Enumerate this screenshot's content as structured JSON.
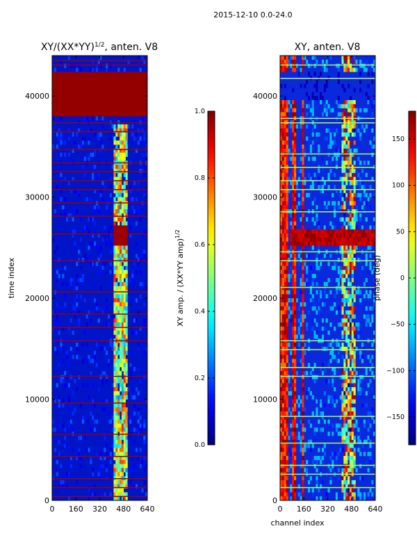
{
  "figure": {
    "suptitle": "2015-12-10 0.0-24.0"
  },
  "chart_data": [
    {
      "type": "heatmap",
      "title_main": "XY/(XX*YY)",
      "title_sup": "1/2",
      "title_rest": ", anten. V8",
      "xlabel": "",
      "ylabel": "time index",
      "xlim": [
        0,
        640
      ],
      "ylim": [
        0,
        44000
      ],
      "x_ticks": [
        0,
        160,
        320,
        480,
        640
      ],
      "y_ticks": [
        0,
        10000,
        20000,
        30000,
        40000
      ],
      "colormap": "jet",
      "colorbar": {
        "label_main": "XY amp. / (XX*YY amp)",
        "label_sup": "1/2",
        "range": [
          0.0,
          1.0
        ],
        "ticks": [
          "0.0",
          "0.2",
          "0.4",
          "0.6",
          "0.8",
          "1.0"
        ]
      }
    },
    {
      "type": "heatmap",
      "title_main": "XY, anten. V8",
      "xlabel": "channel index",
      "ylabel": "",
      "xlim": [
        0,
        640
      ],
      "ylim": [
        0,
        44000
      ],
      "x_ticks": [
        0,
        160,
        320,
        480,
        640
      ],
      "y_ticks": [
        0,
        10000,
        20000,
        30000,
        40000
      ],
      "colormap": "jet",
      "colorbar": {
        "label_main": "phase (deg)",
        "range": [
          -180,
          180
        ],
        "ticks": [
          "−150",
          "−100",
          "−50",
          "0",
          "50",
          "100",
          "150"
        ]
      }
    }
  ],
  "colors": {
    "jet_low": "#00007f",
    "jet_high": "#7f0000",
    "axis": "#000000",
    "background": "#ffffff"
  }
}
